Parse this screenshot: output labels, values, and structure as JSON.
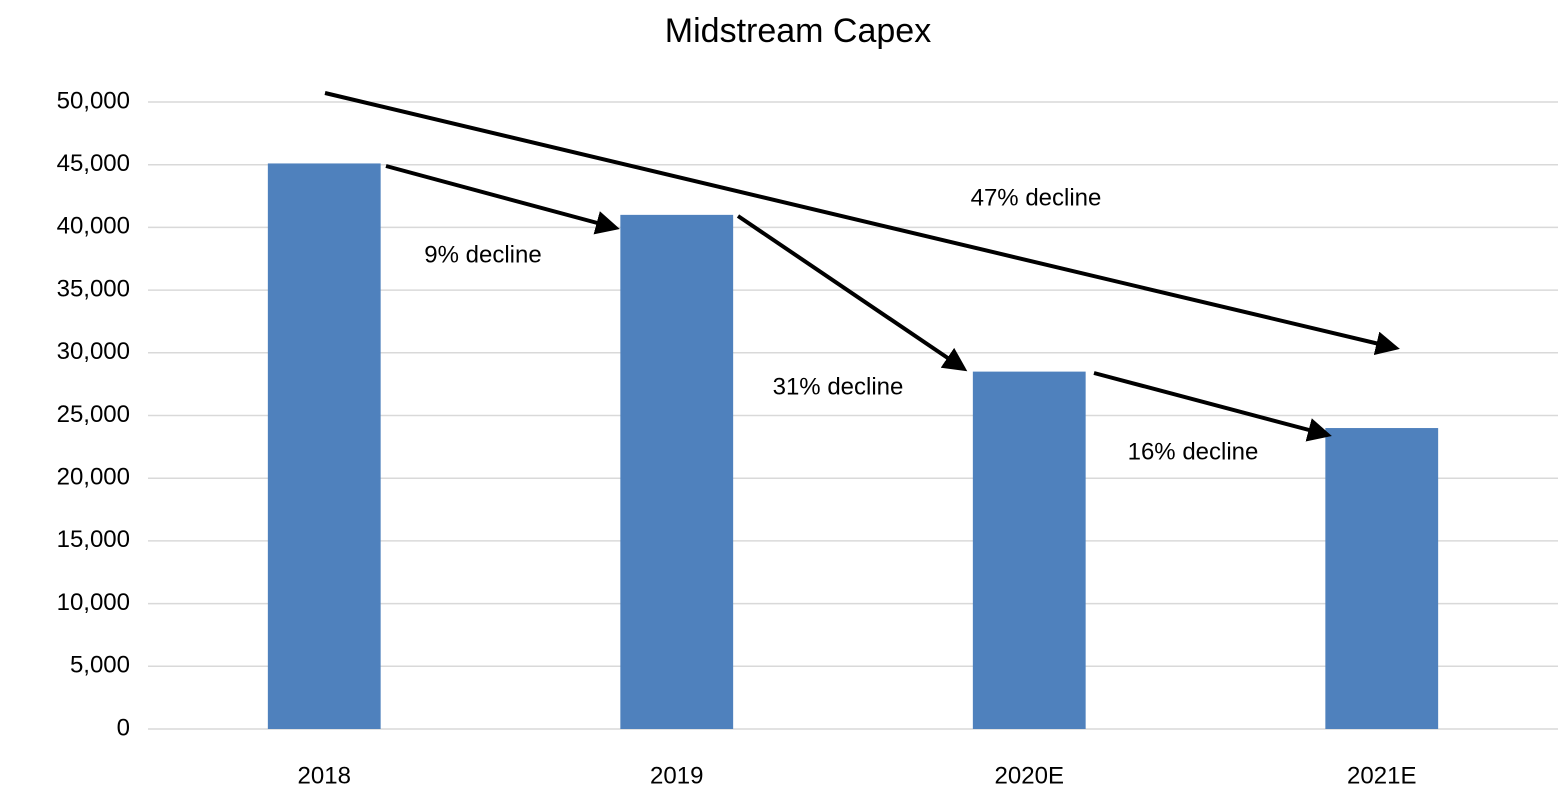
{
  "chart_data": {
    "type": "bar",
    "title": "Midstream Capex",
    "categories": [
      "2018",
      "2019",
      "2020E",
      "2021E"
    ],
    "values": [
      45100,
      41000,
      28500,
      24000
    ],
    "color": "#4f81bd",
    "ylim": [
      0,
      50000
    ],
    "yticks": [
      0,
      {
        "value": 5000,
        "label": "5,000"
      },
      {
        "value": 10000,
        "label": "10,000"
      },
      {
        "value": 15000,
        "label": "15,000"
      },
      {
        "value": 20000,
        "label": "20,000"
      },
      {
        "value": 25000,
        "label": "25,000"
      },
      {
        "value": 30000,
        "label": "30,000"
      },
      {
        "value": 35000,
        "label": "35,000"
      },
      {
        "value": 40000,
        "label": "40,000"
      },
      {
        "value": 45000,
        "label": "45,000"
      },
      {
        "value": 50000,
        "label": "50,000"
      }
    ],
    "grid": true,
    "annotations": [
      "9% decline",
      "31% decline",
      "16% decline",
      "47% decline"
    ]
  }
}
